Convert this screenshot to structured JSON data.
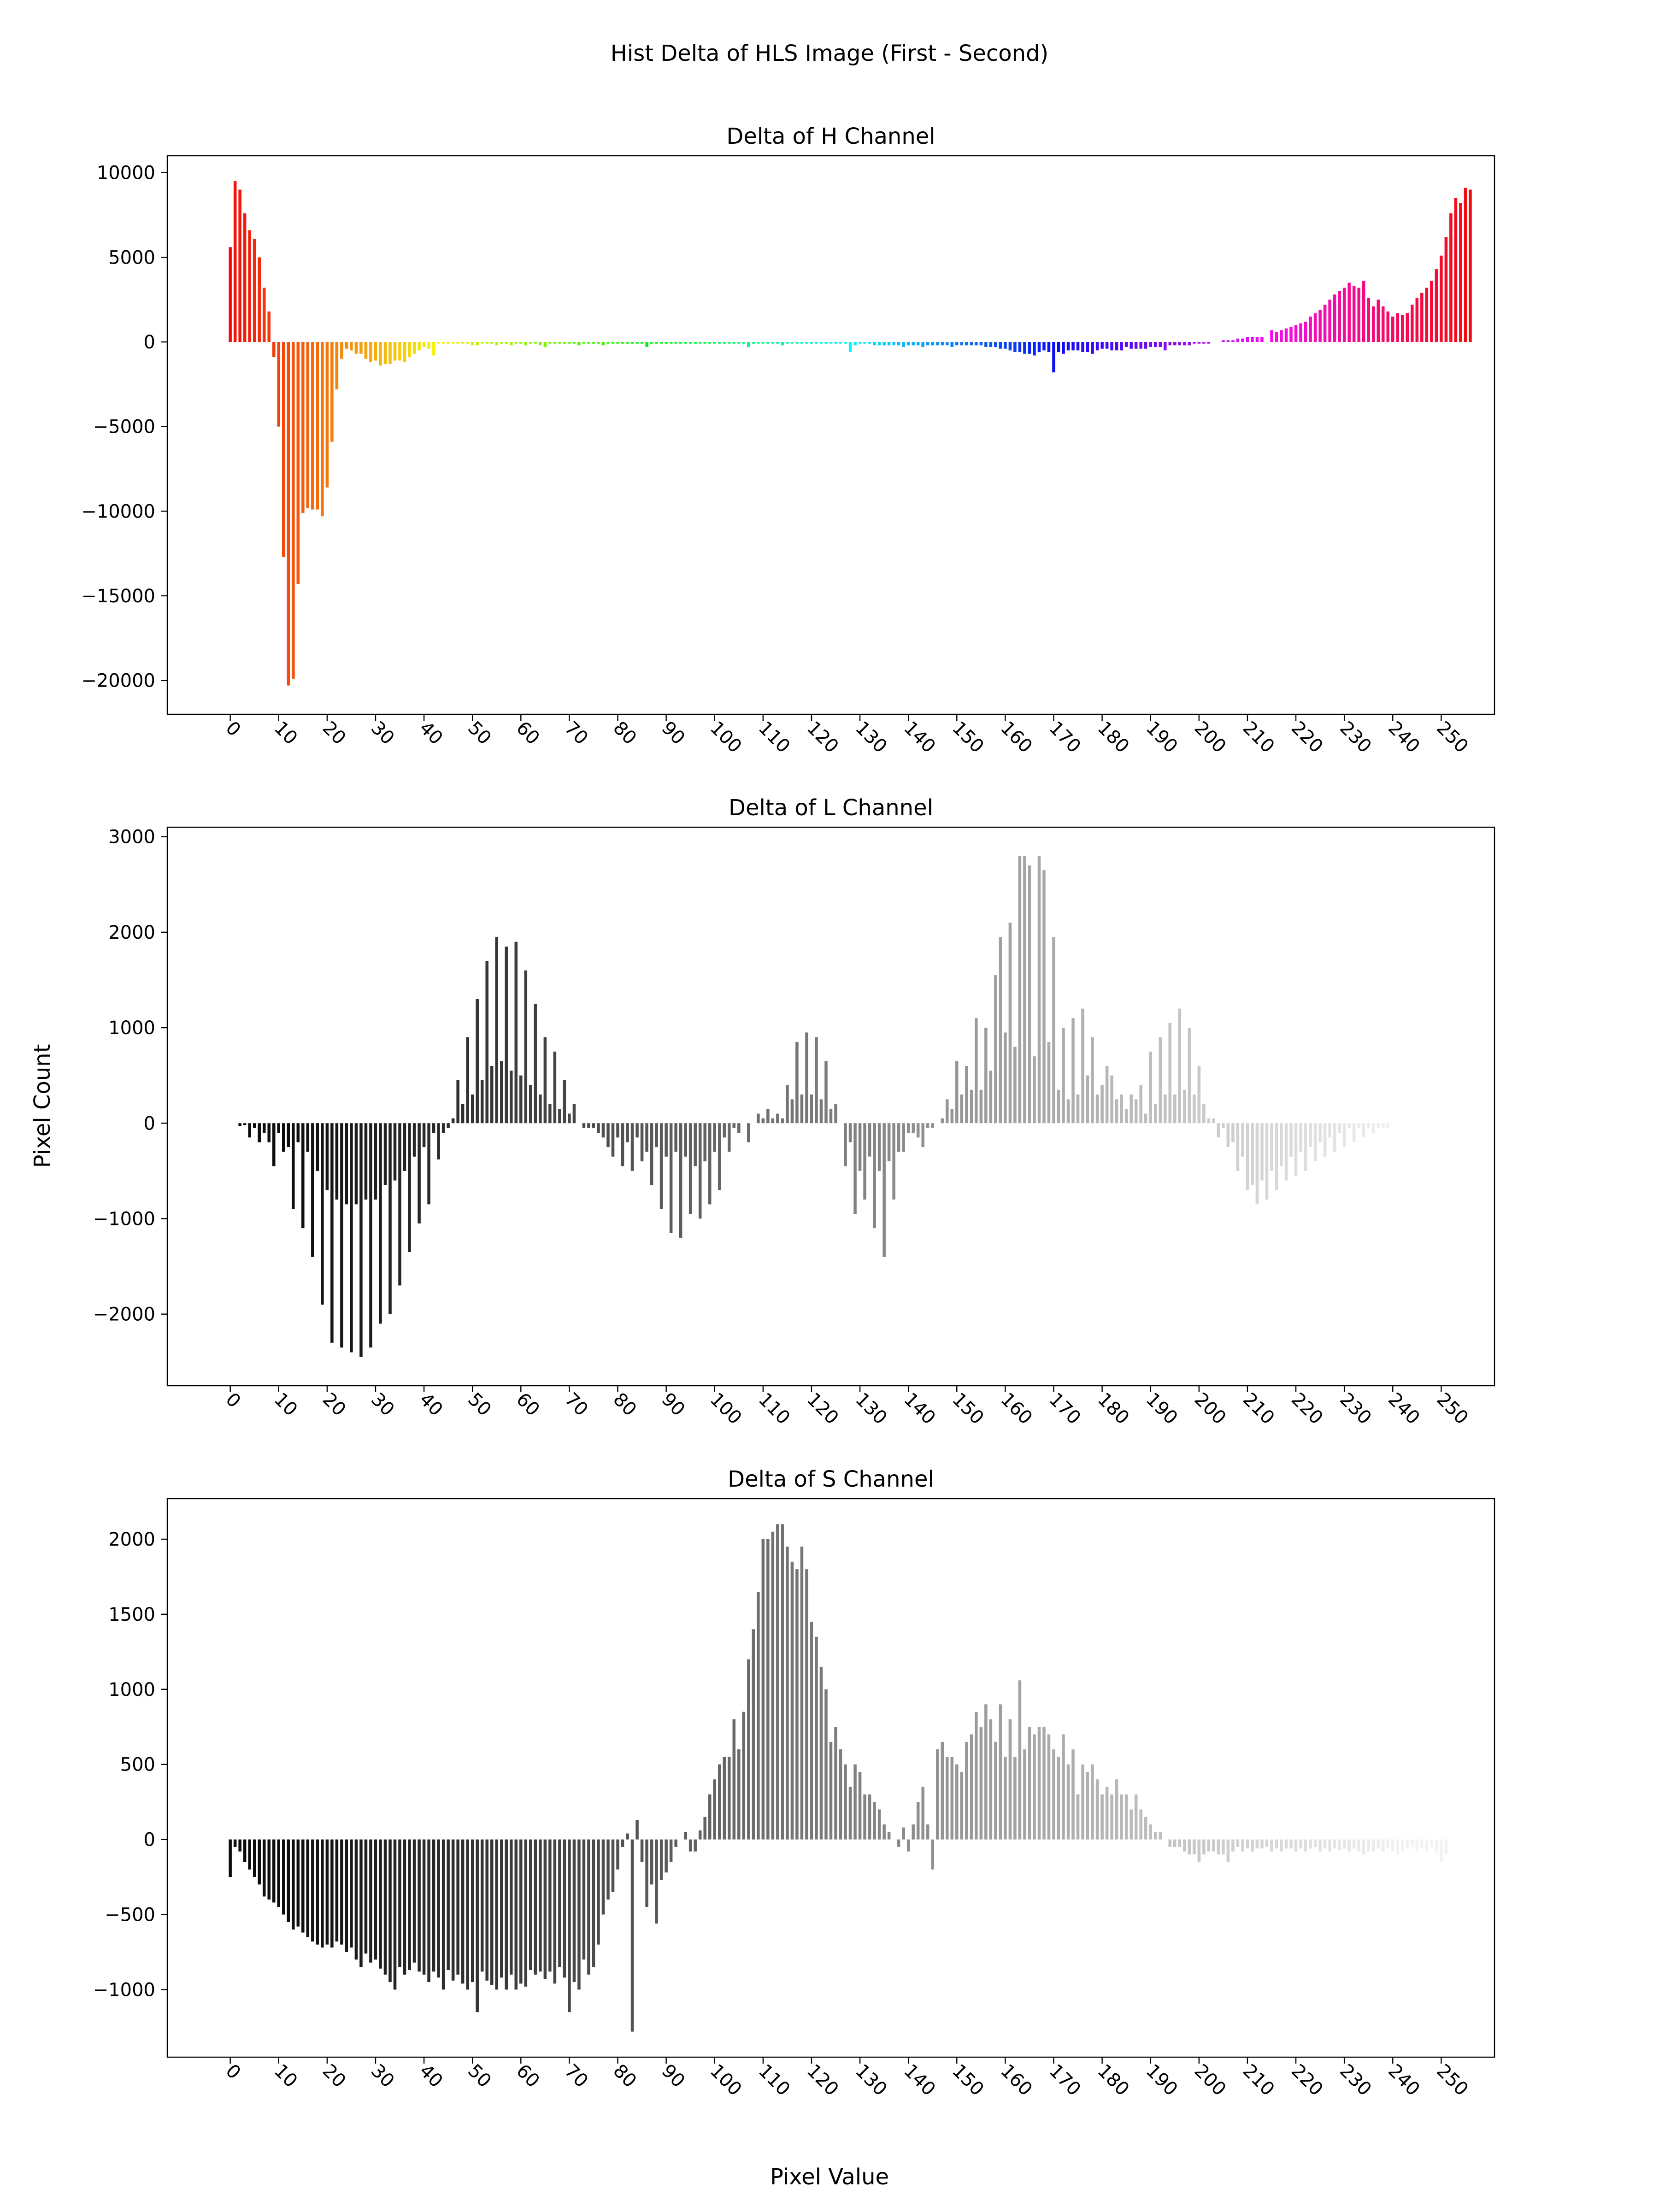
{
  "figure": {
    "suptitle": "Hist Delta of HLS Image (First - Second)",
    "xlabel": "Pixel Value",
    "ylabel": "Pixel Count"
  },
  "chart_data": [
    {
      "type": "bar",
      "title": "Delta of H Channel",
      "color_mode": "hue",
      "xlim": [
        -13,
        261
      ],
      "ylim": [
        -22000,
        11000
      ],
      "xticks": [
        0,
        10,
        20,
        30,
        40,
        50,
        60,
        70,
        80,
        90,
        100,
        110,
        120,
        130,
        140,
        150,
        160,
        170,
        180,
        190,
        200,
        210,
        220,
        230,
        240,
        250
      ],
      "yticks": [
        10000,
        5000,
        0,
        -5000,
        -10000,
        -15000,
        -20000
      ],
      "ytick_labels": [
        "10000",
        "5000",
        "0",
        "−5000",
        "−10000",
        "−15000",
        "−20000"
      ],
      "x_start": 0,
      "values": [
        5600,
        9500,
        9000,
        7600,
        6600,
        6100,
        5000,
        3200,
        1800,
        -900,
        -5000,
        -12700,
        -20300,
        -19900,
        -14300,
        -10100,
        -9800,
        -9900,
        -9900,
        -10300,
        -8600,
        -5900,
        -2800,
        -1000,
        -400,
        -500,
        -700,
        -700,
        -1000,
        -1200,
        -1100,
        -1400,
        -1300,
        -1300,
        -1100,
        -1100,
        -1200,
        -900,
        -700,
        -500,
        -300,
        -400,
        -800,
        -100,
        -100,
        -100,
        -100,
        -100,
        -100,
        -100,
        -200,
        -200,
        -100,
        -100,
        -100,
        -200,
        -100,
        -100,
        -200,
        -100,
        -100,
        -200,
        -100,
        -100,
        -200,
        -300,
        -100,
        -100,
        -100,
        -100,
        -100,
        -100,
        -200,
        -100,
        -100,
        -100,
        -100,
        -200,
        -100,
        -100,
        -100,
        -100,
        -100,
        -100,
        -100,
        -100,
        -300,
        -100,
        -100,
        -100,
        -100,
        -100,
        -100,
        -100,
        -100,
        -100,
        -100,
        -100,
        -100,
        -100,
        -100,
        -100,
        -100,
        -100,
        -100,
        -100,
        -100,
        -300,
        -100,
        -100,
        -100,
        -100,
        -100,
        -100,
        -200,
        -100,
        -100,
        -100,
        -100,
        -100,
        -100,
        -100,
        -100,
        -100,
        -100,
        -100,
        -100,
        -100,
        -600,
        -200,
        -100,
        -100,
        -100,
        -200,
        -200,
        -200,
        -200,
        -200,
        -200,
        -300,
        -200,
        -200,
        -200,
        -300,
        -200,
        -200,
        -200,
        -200,
        -200,
        -300,
        -200,
        -200,
        -200,
        -200,
        -200,
        -200,
        -300,
        -300,
        -300,
        -400,
        -400,
        -500,
        -600,
        -600,
        -700,
        -700,
        -800,
        -600,
        -500,
        -600,
        -1800,
        -600,
        -700,
        -500,
        -500,
        -500,
        -600,
        -600,
        -700,
        -500,
        -400,
        -400,
        -500,
        -500,
        -500,
        -300,
        -400,
        -400,
        -400,
        -400,
        -300,
        -300,
        -300,
        -500,
        -200,
        -200,
        -200,
        -200,
        -200,
        -100,
        -100,
        -100,
        -100,
        0,
        0,
        100,
        100,
        100,
        200,
        200,
        300,
        300,
        300,
        300,
        0,
        700,
        600,
        700,
        800,
        900,
        1000,
        1100,
        1200,
        1500,
        1700,
        1900,
        2200,
        2500,
        2800,
        3000,
        3200,
        3500,
        3300,
        3200,
        3600,
        2600,
        2100,
        2500,
        2100,
        1800,
        1500,
        1700,
        1600,
        1700,
        2200,
        2600,
        2900,
        3200,
        3600,
        4300,
        5100,
        6200,
        7600,
        8500,
        8200,
        9100,
        9000
      ]
    },
    {
      "type": "bar",
      "title": "Delta of L Channel",
      "color_mode": "gray",
      "xlim": [
        -13,
        261
      ],
      "ylim": [
        -2750,
        3100
      ],
      "xticks": [
        0,
        10,
        20,
        30,
        40,
        50,
        60,
        70,
        80,
        90,
        100,
        110,
        120,
        130,
        140,
        150,
        160,
        170,
        180,
        190,
        200,
        210,
        220,
        230,
        240,
        250
      ],
      "yticks": [
        3000,
        2000,
        1000,
        0,
        -1000,
        -2000
      ],
      "ytick_labels": [
        "3000",
        "2000",
        "1000",
        "0",
        "−1000",
        "−2000"
      ],
      "x_start": 0,
      "values": [
        0,
        0,
        -30,
        -20,
        -150,
        -50,
        -200,
        -100,
        -200,
        -450,
        -100,
        -300,
        -250,
        -900,
        -200,
        -1100,
        -300,
        -1400,
        -500,
        -1900,
        -700,
        -2300,
        -800,
        -2350,
        -850,
        -2400,
        -850,
        -2450,
        -800,
        -2350,
        -800,
        -2100,
        -650,
        -2000,
        -600,
        -1700,
        -500,
        -1350,
        -350,
        -1050,
        -250,
        -850,
        -100,
        -380,
        -100,
        -50,
        50,
        450,
        200,
        900,
        300,
        1300,
        450,
        1700,
        600,
        1950,
        650,
        1850,
        550,
        1900,
        500,
        1600,
        400,
        1250,
        300,
        900,
        200,
        750,
        150,
        450,
        100,
        200,
        0,
        -50,
        -50,
        -50,
        -100,
        -150,
        -250,
        -350,
        -150,
        -450,
        -200,
        -500,
        -150,
        -400,
        -300,
        -650,
        -250,
        -900,
        -350,
        -1150,
        -300,
        -1200,
        -350,
        -950,
        -450,
        -1000,
        -400,
        -850,
        -300,
        -700,
        -150,
        -300,
        -50,
        -100,
        0,
        -200,
        0,
        100,
        50,
        150,
        50,
        100,
        50,
        400,
        250,
        850,
        300,
        950,
        300,
        900,
        250,
        650,
        150,
        200,
        0,
        -450,
        -200,
        -950,
        -500,
        -800,
        -350,
        -1100,
        -500,
        -1400,
        -400,
        -800,
        -300,
        -300,
        -100,
        -100,
        -150,
        -250,
        -50,
        -50,
        0,
        50,
        250,
        150,
        650,
        300,
        600,
        350,
        1100,
        350,
        1000,
        550,
        1550,
        1950,
        950,
        2100,
        800,
        2800,
        2800,
        2700,
        700,
        2800,
        2650,
        850,
        1950,
        350,
        1000,
        250,
        1100,
        300,
        1200,
        500,
        900,
        300,
        400,
        600,
        500,
        250,
        300,
        150,
        300,
        250,
        400,
        100,
        750,
        200,
        900,
        300,
        1050,
        300,
        1200,
        350,
        1000,
        300,
        600,
        200,
        50,
        50,
        -150,
        -50,
        -250,
        -200,
        -500,
        -350,
        -700,
        -650,
        -850,
        -600,
        -800,
        -500,
        -700,
        -450,
        -600,
        -350,
        -550,
        -300,
        -500,
        -250,
        -400,
        -200,
        -350,
        -150,
        -300,
        -100,
        -250,
        -50,
        -200,
        -50,
        -150,
        -50,
        -100,
        -50,
        -50,
        -50,
        0,
        0
      ]
    },
    {
      "type": "bar",
      "title": "Delta of S Channel",
      "color_mode": "gray",
      "xlim": [
        -13,
        261
      ],
      "ylim": [
        -1450,
        2270
      ],
      "xticks": [
        0,
        10,
        20,
        30,
        40,
        50,
        60,
        70,
        80,
        90,
        100,
        110,
        120,
        130,
        140,
        150,
        160,
        170,
        180,
        190,
        200,
        210,
        220,
        230,
        240,
        250
      ],
      "yticks": [
        2000,
        1500,
        1000,
        500,
        0,
        -500,
        -1000
      ],
      "ytick_labels": [
        "2000",
        "1500",
        "1000",
        "500",
        "0",
        "−500",
        "−1000"
      ],
      "x_start": 0,
      "values": [
        -250,
        -50,
        -80,
        -150,
        -200,
        -250,
        -300,
        -380,
        -400,
        -420,
        -450,
        -500,
        -550,
        -600,
        -580,
        -620,
        -650,
        -680,
        -700,
        -720,
        -700,
        -720,
        -680,
        -700,
        -750,
        -720,
        -800,
        -850,
        -760,
        -820,
        -800,
        -860,
        -900,
        -950,
        -1000,
        -850,
        -900,
        -870,
        -820,
        -880,
        -900,
        -950,
        -880,
        -920,
        -1000,
        -870,
        -940,
        -900,
        -960,
        -1000,
        -950,
        -1150,
        -880,
        -940,
        -970,
        -1000,
        -920,
        -1000,
        -900,
        -1000,
        -960,
        -980,
        -870,
        -900,
        -880,
        -930,
        -880,
        -960,
        -850,
        -920,
        -1150,
        -950,
        -1000,
        -800,
        -900,
        -850,
        -700,
        -500,
        -400,
        -350,
        -200,
        -50,
        40,
        -1280,
        130,
        -150,
        -450,
        -300,
        -560,
        -270,
        -220,
        -150,
        -50,
        0,
        50,
        -80,
        -80,
        60,
        150,
        300,
        400,
        500,
        550,
        550,
        800,
        600,
        850,
        1200,
        1400,
        1650,
        2000,
        2000,
        2050,
        2100,
        2100,
        1950,
        1850,
        1800,
        1950,
        1800,
        1450,
        1350,
        1150,
        1000,
        650,
        750,
        600,
        500,
        350,
        500,
        450,
        300,
        300,
        250,
        200,
        100,
        50,
        0,
        -50,
        80,
        -80,
        100,
        250,
        350,
        100,
        -200,
        600,
        650,
        550,
        550,
        500,
        450,
        650,
        700,
        850,
        750,
        900,
        800,
        650,
        900,
        550,
        800,
        550,
        1060,
        600,
        750,
        700,
        750,
        750,
        700,
        600,
        550,
        700,
        500,
        600,
        300,
        500,
        450,
        500,
        400,
        300,
        350,
        300,
        400,
        300,
        300,
        200,
        300,
        200,
        150,
        100,
        50,
        50,
        0,
        -50,
        -50,
        -50,
        -80,
        -100,
        -100,
        -150,
        -100,
        -80,
        -80,
        -100,
        -100,
        -150,
        -80,
        -50,
        -80,
        -60,
        -80,
        -60,
        -60,
        -50,
        -80,
        -60,
        -80,
        -60,
        -60,
        -80,
        -60,
        -80,
        -60,
        -50,
        -80,
        -60,
        -80,
        -60,
        -70,
        -60,
        -80,
        -60,
        -80,
        -100,
        -80,
        -80,
        -60,
        -80,
        -60,
        -80,
        -100,
        -80,
        -60,
        -50,
        -80,
        -60,
        -80,
        -50,
        -80,
        -150,
        -100
      ]
    }
  ]
}
